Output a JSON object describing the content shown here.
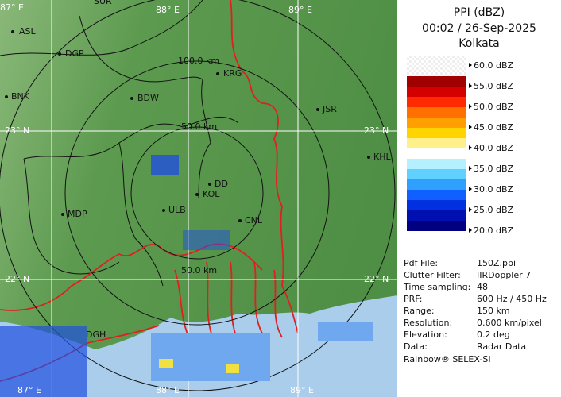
{
  "map": {
    "grid_top": [
      "87° E",
      "88° E",
      "89° E"
    ],
    "grid_bottom": [
      "87° E",
      "88° E",
      "89° E"
    ],
    "grid_left": [
      "23° N",
      "22° N"
    ],
    "grid_right": [
      "23° N",
      "22° N"
    ],
    "range_labels": [
      "100.0 km",
      "50.0 km",
      "50.0 km"
    ],
    "places": [
      "SUR",
      "ASL",
      "DGP",
      "BNK",
      "BDW",
      "KRG",
      "JSR",
      "KHL",
      "DD",
      "KOL",
      "ULB",
      "CNL",
      "MDP",
      "DGH"
    ]
  },
  "panel": {
    "title": "PPI (dBZ)",
    "time": "00:02 / 26-Sep-2025",
    "station": "Kolkata",
    "legend": [
      "60.0 dBZ",
      "55.0 dBZ",
      "50.0 dBZ",
      "45.0 dBZ",
      "40.0 dBZ",
      "35.0 dBZ",
      "30.0 dBZ",
      "25.0 dBZ",
      "20.0 dBZ"
    ],
    "info": [
      [
        "Pdf File:",
        "150Z.ppi"
      ],
      [
        "Clutter Filter:",
        "IIRDoppler 7"
      ],
      [
        "Time sampling:",
        "48"
      ],
      [
        "PRF:",
        "600 Hz / 450 Hz"
      ],
      [
        "Range:",
        "150 km"
      ],
      [
        "Resolution:",
        "0.600 km/pixel"
      ],
      [
        "Elevation:",
        "0.2 deg"
      ],
      [
        "Data:",
        "Radar Data"
      ]
    ],
    "footer": "Rainbow® SELEX-SI"
  }
}
